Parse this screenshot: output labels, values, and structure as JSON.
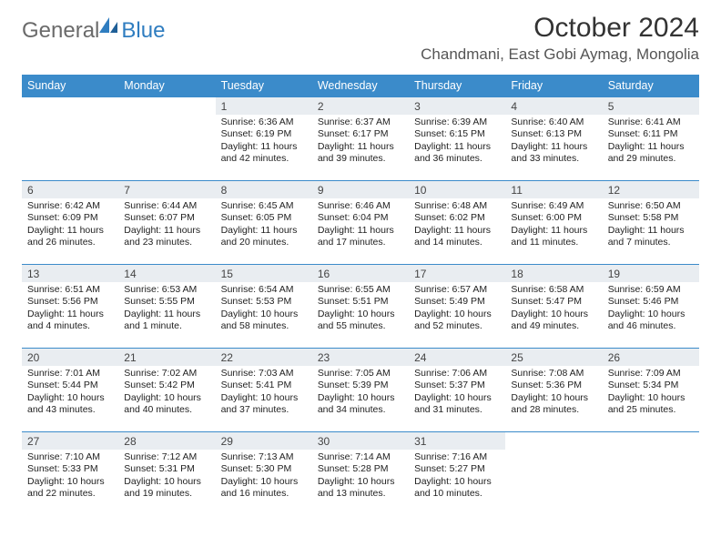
{
  "brand": {
    "word1": "General",
    "word2": "Blue"
  },
  "title": "October 2024",
  "location": "Chandmani, East Gobi Aymag, Mongolia",
  "colors": {
    "header_bg": "#3b8bca",
    "header_text": "#ffffff",
    "daynum_bg": "#e9edf1",
    "row_border": "#3b8bca",
    "logo_gray": "#6a6a6a",
    "logo_blue": "#2f7dc0"
  },
  "dow": [
    "Sunday",
    "Monday",
    "Tuesday",
    "Wednesday",
    "Thursday",
    "Friday",
    "Saturday"
  ],
  "weeks": [
    [
      null,
      null,
      {
        "n": "1",
        "sr": "6:36 AM",
        "ss": "6:19 PM",
        "dl": "11 hours and 42 minutes."
      },
      {
        "n": "2",
        "sr": "6:37 AM",
        "ss": "6:17 PM",
        "dl": "11 hours and 39 minutes."
      },
      {
        "n": "3",
        "sr": "6:39 AM",
        "ss": "6:15 PM",
        "dl": "11 hours and 36 minutes."
      },
      {
        "n": "4",
        "sr": "6:40 AM",
        "ss": "6:13 PM",
        "dl": "11 hours and 33 minutes."
      },
      {
        "n": "5",
        "sr": "6:41 AM",
        "ss": "6:11 PM",
        "dl": "11 hours and 29 minutes."
      }
    ],
    [
      {
        "n": "6",
        "sr": "6:42 AM",
        "ss": "6:09 PM",
        "dl": "11 hours and 26 minutes."
      },
      {
        "n": "7",
        "sr": "6:44 AM",
        "ss": "6:07 PM",
        "dl": "11 hours and 23 minutes."
      },
      {
        "n": "8",
        "sr": "6:45 AM",
        "ss": "6:05 PM",
        "dl": "11 hours and 20 minutes."
      },
      {
        "n": "9",
        "sr": "6:46 AM",
        "ss": "6:04 PM",
        "dl": "11 hours and 17 minutes."
      },
      {
        "n": "10",
        "sr": "6:48 AM",
        "ss": "6:02 PM",
        "dl": "11 hours and 14 minutes."
      },
      {
        "n": "11",
        "sr": "6:49 AM",
        "ss": "6:00 PM",
        "dl": "11 hours and 11 minutes."
      },
      {
        "n": "12",
        "sr": "6:50 AM",
        "ss": "5:58 PM",
        "dl": "11 hours and 7 minutes."
      }
    ],
    [
      {
        "n": "13",
        "sr": "6:51 AM",
        "ss": "5:56 PM",
        "dl": "11 hours and 4 minutes."
      },
      {
        "n": "14",
        "sr": "6:53 AM",
        "ss": "5:55 PM",
        "dl": "11 hours and 1 minute."
      },
      {
        "n": "15",
        "sr": "6:54 AM",
        "ss": "5:53 PM",
        "dl": "10 hours and 58 minutes."
      },
      {
        "n": "16",
        "sr": "6:55 AM",
        "ss": "5:51 PM",
        "dl": "10 hours and 55 minutes."
      },
      {
        "n": "17",
        "sr": "6:57 AM",
        "ss": "5:49 PM",
        "dl": "10 hours and 52 minutes."
      },
      {
        "n": "18",
        "sr": "6:58 AM",
        "ss": "5:47 PM",
        "dl": "10 hours and 49 minutes."
      },
      {
        "n": "19",
        "sr": "6:59 AM",
        "ss": "5:46 PM",
        "dl": "10 hours and 46 minutes."
      }
    ],
    [
      {
        "n": "20",
        "sr": "7:01 AM",
        "ss": "5:44 PM",
        "dl": "10 hours and 43 minutes."
      },
      {
        "n": "21",
        "sr": "7:02 AM",
        "ss": "5:42 PM",
        "dl": "10 hours and 40 minutes."
      },
      {
        "n": "22",
        "sr": "7:03 AM",
        "ss": "5:41 PM",
        "dl": "10 hours and 37 minutes."
      },
      {
        "n": "23",
        "sr": "7:05 AM",
        "ss": "5:39 PM",
        "dl": "10 hours and 34 minutes."
      },
      {
        "n": "24",
        "sr": "7:06 AM",
        "ss": "5:37 PM",
        "dl": "10 hours and 31 minutes."
      },
      {
        "n": "25",
        "sr": "7:08 AM",
        "ss": "5:36 PM",
        "dl": "10 hours and 28 minutes."
      },
      {
        "n": "26",
        "sr": "7:09 AM",
        "ss": "5:34 PM",
        "dl": "10 hours and 25 minutes."
      }
    ],
    [
      {
        "n": "27",
        "sr": "7:10 AM",
        "ss": "5:33 PM",
        "dl": "10 hours and 22 minutes."
      },
      {
        "n": "28",
        "sr": "7:12 AM",
        "ss": "5:31 PM",
        "dl": "10 hours and 19 minutes."
      },
      {
        "n": "29",
        "sr": "7:13 AM",
        "ss": "5:30 PM",
        "dl": "10 hours and 16 minutes."
      },
      {
        "n": "30",
        "sr": "7:14 AM",
        "ss": "5:28 PM",
        "dl": "10 hours and 13 minutes."
      },
      {
        "n": "31",
        "sr": "7:16 AM",
        "ss": "5:27 PM",
        "dl": "10 hours and 10 minutes."
      },
      null,
      null
    ]
  ]
}
